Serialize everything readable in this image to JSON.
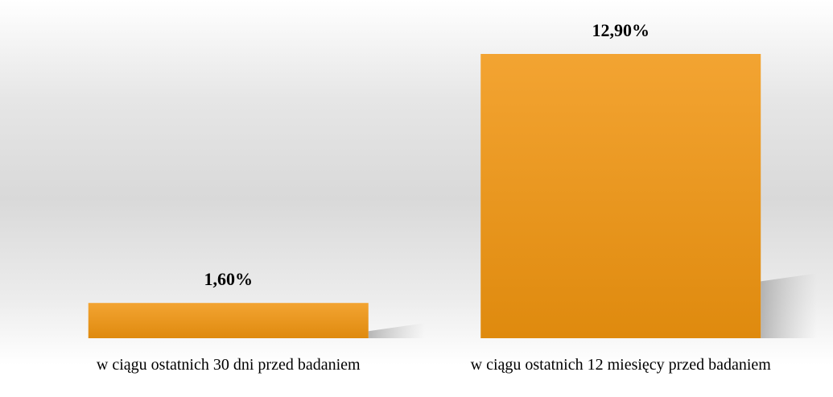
{
  "chart_data": {
    "type": "bar",
    "categories": [
      "w ciągu ostatnich 30 dni przed badaniem",
      "w ciągu ostatnich 12 miesięcy przed badaniem"
    ],
    "values": [
      1.6,
      12.9
    ],
    "value_labels": [
      "1,60%",
      "12,90%"
    ],
    "color": "#e8961f"
  }
}
